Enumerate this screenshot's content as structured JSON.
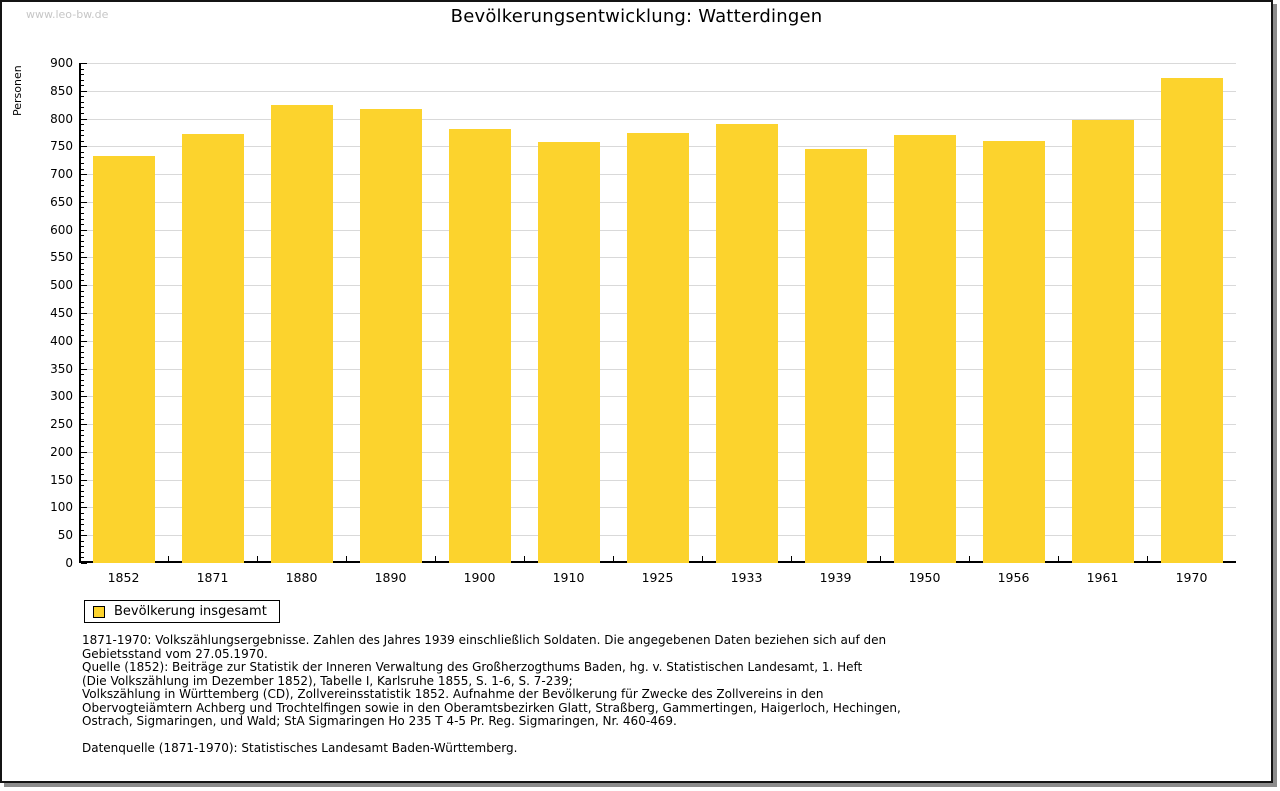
{
  "page": {
    "watermark": "www.leo-bw.de",
    "title": "Bevölkerungsentwicklung: Watterdingen"
  },
  "chart_data": {
    "type": "bar",
    "title": "Bevölkerungsentwicklung: Watterdingen",
    "ylabel": "Personen",
    "xlabel": "",
    "categories": [
      "1852",
      "1871",
      "1880",
      "1890",
      "1900",
      "1910",
      "1925",
      "1933",
      "1939",
      "1950",
      "1956",
      "1961",
      "1970"
    ],
    "values": [
      732,
      773,
      825,
      817,
      782,
      758,
      774,
      790,
      746,
      770,
      759,
      797,
      873
    ],
    "ylim": [
      0,
      900
    ],
    "ytick_step": 50,
    "yminor_step": 10,
    "grid": true,
    "legend_position": "bottom-left",
    "legend_entries": [
      "Bevölkerung insgesamt"
    ],
    "bar_color": "#fcd32d",
    "grid_color": "#d9d9d9",
    "axis_color": "#000000"
  },
  "legend": {
    "items": [
      {
        "label": "Bevölkerung insgesamt",
        "color": "#fcd32d"
      }
    ]
  },
  "notes": {
    "lines": [
      "1871-1970: Volkszählungsergebnisse. Zahlen des Jahres 1939 einschließlich Soldaten. Die angegebenen Daten beziehen sich auf den",
      "Gebietsstand vom 27.05.1970.",
      "Quelle (1852): Beiträge zur Statistik der Inneren Verwaltung des Großherzogthums Baden, hg. v. Statistischen Landesamt, 1. Heft",
      "(Die Volkszählung im Dezember 1852), Tabelle I, Karlsruhe 1855, S. 1-6, S. 7-239;",
      "Volkszählung in Württemberg (CD), Zollvereinsstatistik 1852. Aufnahme der Bevölkerung für Zwecke des Zollvereins in den",
      "Obervogteiämtern Achberg und Trochtelfingen sowie in den Oberamtsbezirken Glatt, Straßberg, Gammertingen, Haigerloch, Hechingen,",
      "Ostrach, Sigmaringen, und Wald; StA Sigmaringen Ho 235 T 4-5 Pr. Reg. Sigmaringen, Nr. 460-469.",
      "",
      "Datenquelle (1871-1970): Statistisches Landesamt Baden-Württemberg."
    ]
  }
}
